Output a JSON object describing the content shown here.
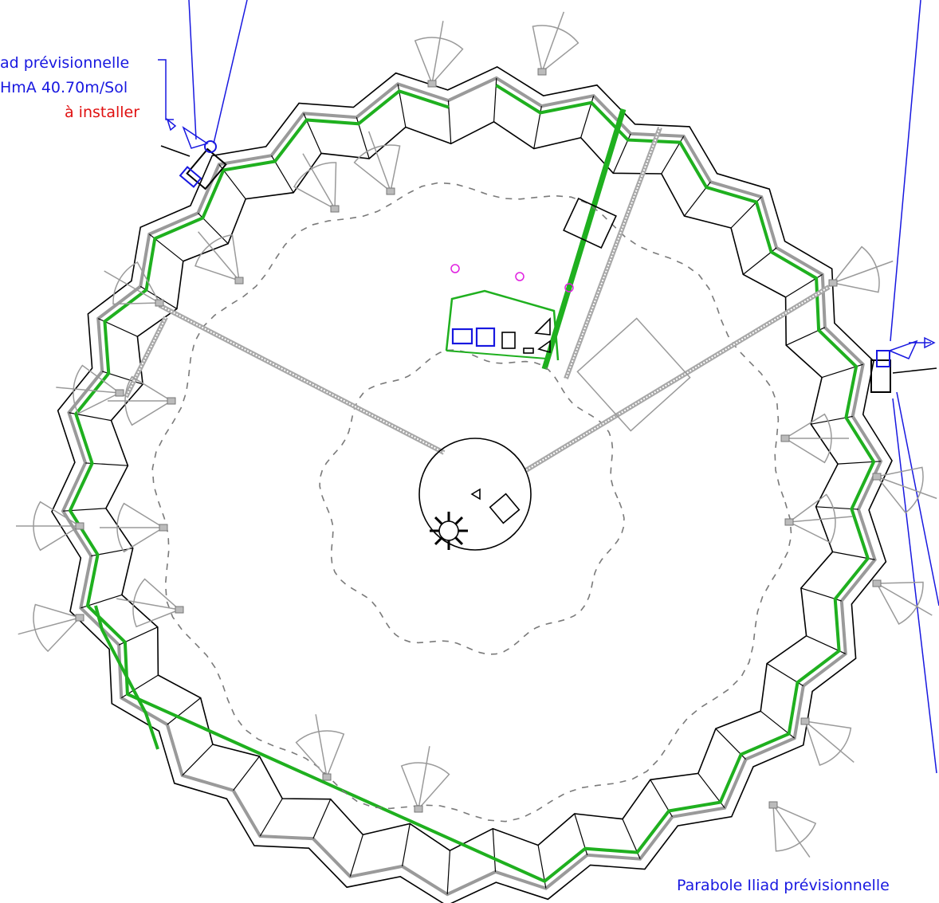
{
  "labels": {
    "top_left_line1": "ad prévisionnelle",
    "top_left_line2": "HmA 40.70m/Sol",
    "top_left_line3": "à installer",
    "bottom_right_line1": "Parabole Iliad prévisionnelle"
  },
  "colors": {
    "annotation_blue": "#1818e0",
    "install_red": "#e01010",
    "cable_green": "#1fb01f",
    "magenta_markers": "#e020e0"
  },
  "icons": {
    "antenna": "sector-antenna-icon",
    "dish": "parabola-dish-icon",
    "fan": "fan-icon"
  }
}
